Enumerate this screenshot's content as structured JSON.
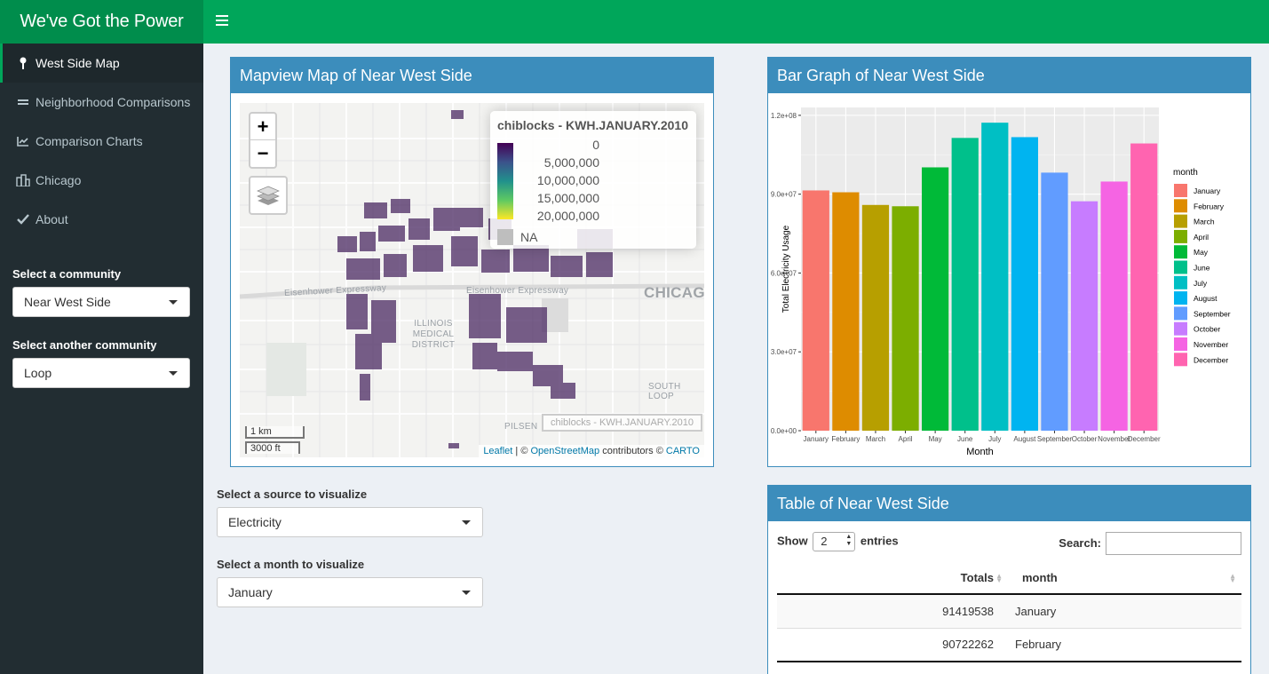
{
  "app_title": "We've Got the Power",
  "nav": {
    "items": [
      {
        "label": "West Side Map",
        "icon": "map-marker-icon"
      },
      {
        "label": "Neighborhood Comparisons",
        "icon": "equals-icon"
      },
      {
        "label": "Comparison Charts",
        "icon": "line-chart-icon"
      },
      {
        "label": "Chicago",
        "icon": "building-icon"
      },
      {
        "label": "About",
        "icon": "check-icon"
      }
    ],
    "community_label": "Select a community",
    "community_value": "Near West Side",
    "other_community_label": "Select another community",
    "other_community_value": "Loop"
  },
  "map_box": {
    "title": "Mapview Map of Near West Side",
    "legend_title": "chiblocks - KWH.JANUARY.2010",
    "legend_labels": [
      "0",
      "5,000,000",
      "10,000,000",
      "15,000,000",
      "20,000,000"
    ],
    "legend_na": "NA",
    "place_labels": {
      "eisenhower_1": "Eisenhower Expressway",
      "eisenhower_2": "Eisenhower Expressway",
      "chicago": "CHICAG",
      "medical_district": "ILLINOIS\nMEDICAL\nDISTRICT",
      "south_loop": "SOUTH LOOP",
      "pilsen": "PILSEN"
    },
    "layer_tag": "chiblocks - KWH.JANUARY.2010",
    "scale_km": "1 km",
    "scale_ft": "3000 ft",
    "attribution": {
      "leaflet": "Leaflet",
      "sep": " | © ",
      "osm": "OpenStreetMap",
      "mid": " contributors © ",
      "carto": "CARTO"
    }
  },
  "controls": {
    "source_label": "Select a source to visualize",
    "source_value": "Electricity",
    "month_label": "Select a month to visualize",
    "month_value": "January"
  },
  "bar_box": {
    "title": "Bar Graph of Near West Side"
  },
  "chart_data": {
    "type": "bar",
    "categories": [
      "January",
      "February",
      "March",
      "April",
      "May",
      "June",
      "July",
      "August",
      "September",
      "October",
      "November",
      "December"
    ],
    "values": [
      91419538,
      90722262,
      85900000,
      85400000,
      100200000,
      111400000,
      117200000,
      111700000,
      98200000,
      87300000,
      94800000,
      109300000
    ],
    "colors": [
      "#F8766D",
      "#DE8C00",
      "#B79F00",
      "#7CAE00",
      "#00BA38",
      "#00C08B",
      "#00BFC4",
      "#00B4F0",
      "#619CFF",
      "#C77CFF",
      "#F564E3",
      "#FF64B0"
    ],
    "ylabel": "Total Electricity Usage",
    "xlabel": "Month",
    "yticks": [
      0,
      30000000,
      60000000,
      90000000,
      120000000
    ],
    "ytick_labels": [
      "0.0e+00",
      "3.0e+07",
      "6.0e+07",
      "9.0e+07",
      "1.2e+08"
    ],
    "ylim": [
      0,
      123000000
    ],
    "legend_title": "month",
    "legend_position": "right",
    "grid": true
  },
  "table_box": {
    "title": "Table of Near West Side",
    "show_label": "Show",
    "entries_value": "2",
    "entries_label": "entries",
    "search_label": "Search:",
    "columns": [
      "Totals",
      "month"
    ],
    "rows": [
      {
        "totals": "91419538",
        "month": "January"
      },
      {
        "totals": "90722262",
        "month": "February"
      }
    ]
  }
}
